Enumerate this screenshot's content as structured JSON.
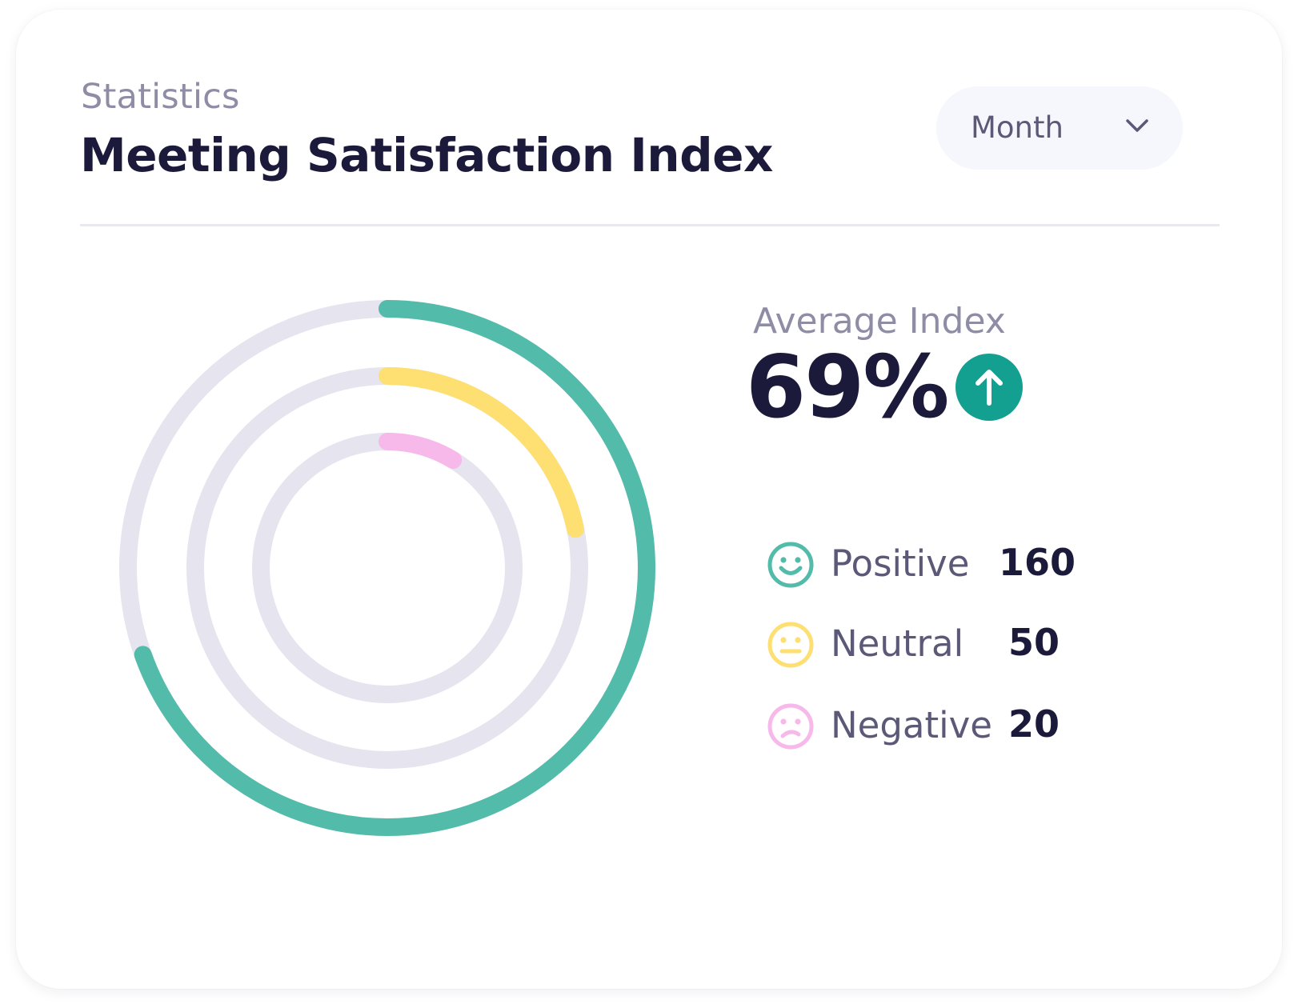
{
  "header": {
    "subtitle": "Statistics",
    "title": "Meeting Satisfaction Index"
  },
  "period_select": {
    "selected": "Month"
  },
  "summary": {
    "label": "Average Index",
    "value": "69%",
    "trend": "up"
  },
  "colors": {
    "positive": "#52bbaa",
    "neutral": "#fddf72",
    "negative": "#f7b8ea",
    "track": "#e5e4ef",
    "trend_badge": "#14a091"
  },
  "chart_data": {
    "type": "radial-bar",
    "max": 230,
    "series": [
      {
        "name": "Positive",
        "value": 160,
        "icon": "smile-icon"
      },
      {
        "name": "Neutral",
        "value": 50,
        "icon": "neutral-face-icon"
      },
      {
        "name": "Negative",
        "value": 20,
        "icon": "sad-face-icon"
      }
    ]
  }
}
